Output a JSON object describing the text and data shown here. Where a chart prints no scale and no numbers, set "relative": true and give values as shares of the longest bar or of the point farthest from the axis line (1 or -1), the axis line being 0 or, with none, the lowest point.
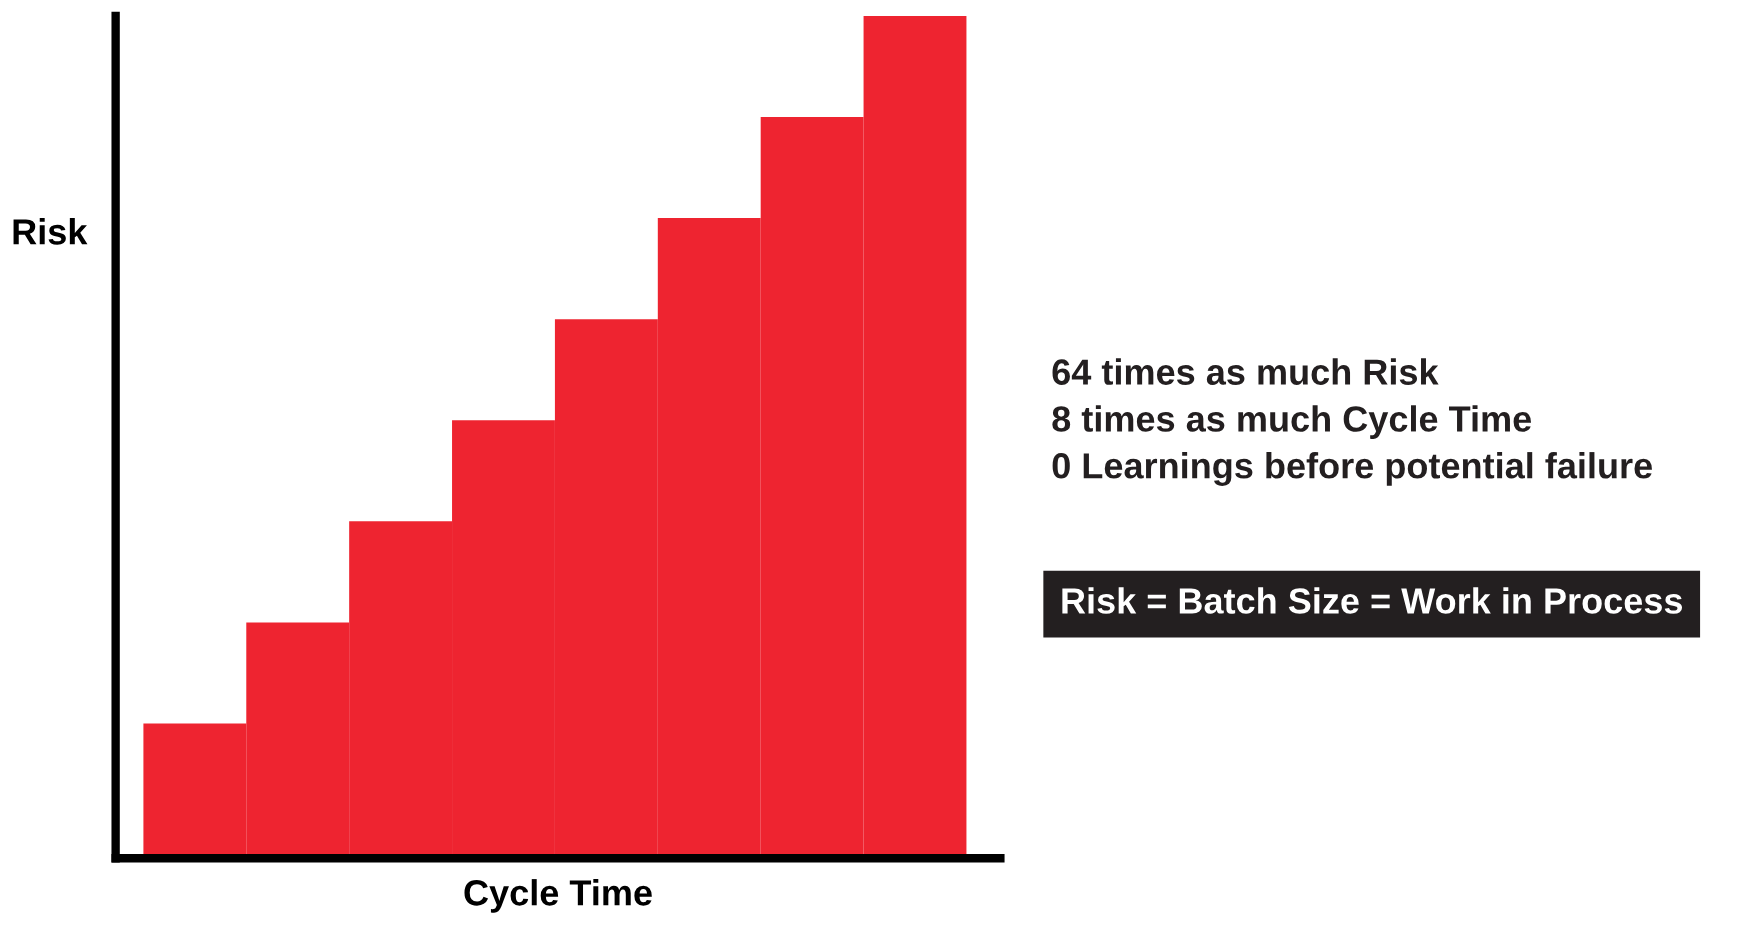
{
  "chart_data": {
    "type": "bar",
    "relative": true,
    "xlabel": "Cycle Time",
    "ylabel": "Risk",
    "categories": [
      null,
      null,
      null,
      null,
      null,
      null,
      null,
      null
    ],
    "values": [
      0.16,
      0.28,
      0.4,
      0.52,
      0.64,
      0.76,
      0.88,
      1.0
    ],
    "color": "#ee2430",
    "grid": false,
    "legend": false,
    "annotations": [
      "64 times as much Risk",
      "8 times as much Cycle Time",
      "0 Learnings before potential failure",
      "Risk = Batch Size = Work in Process"
    ]
  }
}
